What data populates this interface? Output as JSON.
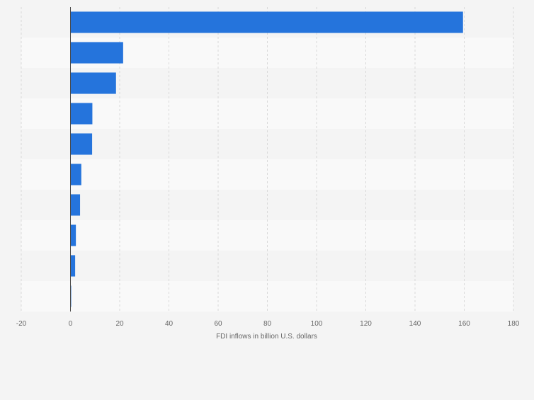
{
  "chart_data": {
    "type": "bar",
    "orientation": "horizontal",
    "categories": [
      "",
      "",
      "",
      "",
      "",
      "",
      "",
      "",
      "",
      ""
    ],
    "values": [
      159.5,
      21.4,
      18.5,
      8.9,
      8.8,
      4.4,
      3.9,
      2.2,
      1.9,
      0.2
    ],
    "title": "",
    "xlabel": "FDI inflows in billion U.S. dollars",
    "ylabel": "",
    "xlim": [
      -20,
      180
    ],
    "xticks": [
      -20,
      0,
      20,
      40,
      60,
      80,
      100,
      120,
      140,
      160,
      180
    ],
    "grid": true,
    "legend": "none",
    "colors": {
      "bar": "#2574dc",
      "band_light": "#f9f9f9",
      "band_dark": "#f4f4f4",
      "grid": "#d9d9d9",
      "zero_line": "#4a4a4a",
      "tick_text": "#666666",
      "label_text": "#666666"
    }
  }
}
